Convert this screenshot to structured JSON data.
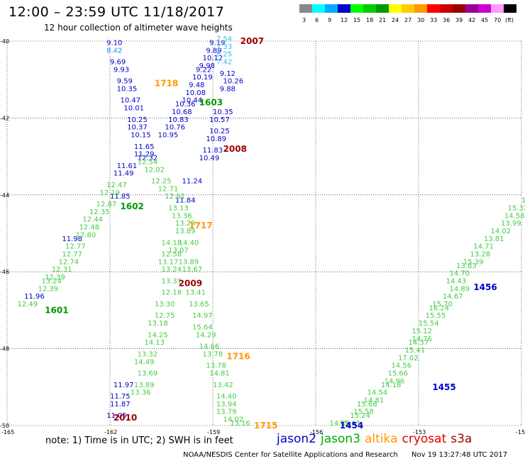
{
  "title": "12:00 – 23:59 UTC 11/18/2017",
  "subtitle": "12 hour collection of altimeter wave heights",
  "colorbar": {
    "labels": [
      "3",
      "6",
      "9",
      "12",
      "15",
      "18",
      "21",
      "24",
      "27",
      "30",
      "33",
      "36",
      "39",
      "42",
      "45",
      "70",
      "(ft)"
    ],
    "colors": [
      "#888888",
      "#00ffff",
      "#00aaff",
      "#0000cc",
      "#00ff00",
      "#00cc00",
      "#009900",
      "#ffff00",
      "#ffcc00",
      "#ff9900",
      "#ff0000",
      "#cc0000",
      "#990000",
      "#990099",
      "#cc00cc",
      "#ff99ff",
      "#000000"
    ]
  },
  "note": "note:  1) Time is in UTC;  2) SWH is in feet",
  "credit": "NOAA/NESDIS Center for Satellite Applications and Research",
  "timestamp": "Nov 19 13:27:48 UTC 2017",
  "satellites": [
    {
      "name": "jason2",
      "color": "#0000cc"
    },
    {
      "name": "jason3",
      "color": "#00aa00"
    },
    {
      "name": "altika",
      "color": "#ff9900"
    },
    {
      "name": "cryosat",
      "color": "#dd0000"
    },
    {
      "name": "s3a",
      "color": "#990000"
    }
  ],
  "chart_data": {
    "type": "scatter",
    "xlabel": "",
    "ylabel": "",
    "xlim": [
      -165,
      -150
    ],
    "ylim": [
      -50,
      -40
    ],
    "x_ticks": [
      "-165",
      "-162",
      "-159",
      "-156",
      "-153",
      "-150"
    ],
    "y_ticks": [
      "-40",
      "-42",
      "-44",
      "-46",
      "-48",
      "-50"
    ],
    "grid": true,
    "time_labels": [
      {
        "text": "2007",
        "lon": -158.2,
        "lat": -40.0,
        "color": "#990000"
      },
      {
        "text": "1718",
        "lon": -160.7,
        "lat": -41.1,
        "color": "#ff9900"
      },
      {
        "text": "1603",
        "lon": -159.4,
        "lat": -41.6,
        "color": "#009900"
      },
      {
        "text": "2008",
        "lon": -158.7,
        "lat": -42.8,
        "color": "#990000"
      },
      {
        "text": "1602",
        "lon": -161.7,
        "lat": -44.3,
        "color": "#009900"
      },
      {
        "text": "1717",
        "lon": -159.7,
        "lat": -44.8,
        "color": "#ff9900"
      },
      {
        "text": "2009",
        "lon": -160.0,
        "lat": -46.3,
        "color": "#990000"
      },
      {
        "text": "1601",
        "lon": -163.9,
        "lat": -47.0,
        "color": "#009900"
      },
      {
        "text": "1456",
        "lon": -151.4,
        "lat": -46.4,
        "color": "#0000cc"
      },
      {
        "text": "1716",
        "lon": -158.6,
        "lat": -48.2,
        "color": "#ff9900"
      },
      {
        "text": "1455",
        "lon": -152.6,
        "lat": -49.0,
        "color": "#0000cc"
      },
      {
        "text": "2010",
        "lon": -161.9,
        "lat": -49.8,
        "color": "#990000"
      },
      {
        "text": "1715",
        "lon": -157.8,
        "lat": -50.0,
        "color": "#ff9900"
      },
      {
        "text": "1454",
        "lon": -155.3,
        "lat": -50.0,
        "color": "#0000cc"
      }
    ],
    "series": [
      {
        "name": "jason2 (track A)",
        "color": "#0000cc",
        "points": [
          {
            "lon": -162.1,
            "lat": -40.1,
            "v": "9.10"
          },
          {
            "lon": -162.1,
            "lat": -40.3,
            "v": "8.42"
          },
          {
            "lon": -162.0,
            "lat": -40.6,
            "v": "9.69"
          },
          {
            "lon": -161.9,
            "lat": -40.8,
            "v": "9.93"
          },
          {
            "lon": -161.8,
            "lat": -41.1,
            "v": "9.59"
          },
          {
            "lon": -161.8,
            "lat": -41.3,
            "v": "10.35"
          },
          {
            "lon": -161.7,
            "lat": -41.6,
            "v": "10.47"
          },
          {
            "lon": -161.6,
            "lat": -41.8,
            "v": "10.01"
          },
          {
            "lon": -161.5,
            "lat": -42.1,
            "v": "10.25"
          },
          {
            "lon": -161.5,
            "lat": -42.3,
            "v": "10.37"
          },
          {
            "lon": -161.4,
            "lat": -42.5,
            "v": "10.15"
          },
          {
            "lon": -161.3,
            "lat": -42.8,
            "v": "11.65"
          },
          {
            "lon": -161.3,
            "lat": -43.0,
            "v": "11.29"
          },
          {
            "lon": -161.8,
            "lat": -43.3,
            "v": "11.61"
          },
          {
            "lon": -161.9,
            "lat": -43.5,
            "v": "11.49"
          },
          {
            "lon": -162.0,
            "lat": -44.1,
            "v": "11.85"
          },
          {
            "lon": -163.4,
            "lat": -45.2,
            "v": "11.98"
          },
          {
            "lon": -164.5,
            "lat": -46.7,
            "v": "11.96"
          },
          {
            "lon": -161.9,
            "lat": -49.0,
            "v": "11.97"
          },
          {
            "lon": -162.0,
            "lat": -49.3,
            "v": "11.75"
          },
          {
            "lon": -162.0,
            "lat": -49.5,
            "v": "11.87"
          },
          {
            "lon": -162.1,
            "lat": -49.8,
            "v": "11.05"
          }
        ]
      },
      {
        "name": "jason2 (track B)",
        "color": "#0000cc",
        "points": [
          {
            "lon": -159.1,
            "lat": -40.1,
            "v": "9.19"
          },
          {
            "lon": -159.2,
            "lat": -40.3,
            "v": "9.89"
          },
          {
            "lon": -159.3,
            "lat": -40.5,
            "v": "10.12"
          },
          {
            "lon": -159.4,
            "lat": -40.7,
            "v": "9.98"
          },
          {
            "lon": -159.5,
            "lat": -40.8,
            "v": "9.22"
          },
          {
            "lon": -158.8,
            "lat": -40.9,
            "v": "9.12"
          },
          {
            "lon": -159.6,
            "lat": -41.0,
            "v": "10.19"
          },
          {
            "lon": -158.7,
            "lat": -41.1,
            "v": "10.26"
          },
          {
            "lon": -159.7,
            "lat": -41.2,
            "v": "9.48"
          },
          {
            "lon": -159.8,
            "lat": -41.4,
            "v": "10.08"
          },
          {
            "lon": -158.8,
            "lat": -41.3,
            "v": "9.88"
          },
          {
            "lon": -159.9,
            "lat": -41.6,
            "v": "10.44"
          },
          {
            "lon": -160.1,
            "lat": -41.7,
            "v": "10.36"
          },
          {
            "lon": -159.0,
            "lat": -41.9,
            "v": "10.35"
          },
          {
            "lon": -160.2,
            "lat": -41.9,
            "v": "10.68"
          },
          {
            "lon": -160.3,
            "lat": -42.1,
            "v": "10.83"
          },
          {
            "lon": -159.1,
            "lat": -42.1,
            "v": "10.57"
          },
          {
            "lon": -160.4,
            "lat": -42.3,
            "v": "10.76"
          },
          {
            "lon": -159.1,
            "lat": -42.4,
            "v": "10.25"
          },
          {
            "lon": -160.6,
            "lat": -42.5,
            "v": "10.95"
          },
          {
            "lon": -159.2,
            "lat": -42.6,
            "v": "10.89"
          },
          {
            "lon": -159.3,
            "lat": -42.9,
            "v": "11.83"
          },
          {
            "lon": -159.4,
            "lat": -43.1,
            "v": "10.49"
          },
          {
            "lon": -159.9,
            "lat": -43.7,
            "v": "11.24"
          },
          {
            "lon": -160.1,
            "lat": -44.2,
            "v": "11.84"
          }
        ]
      },
      {
        "name": "jason2 (track C)",
        "color": "#0000cc",
        "points": [
          {
            "lon": -161.2,
            "lat": -43.1,
            "v": "12.32"
          }
        ]
      },
      {
        "name": "jason3 (track A)",
        "color": "#44cc44",
        "points": [
          {
            "lon": -161.2,
            "lat": -43.2,
            "v": "12.54"
          },
          {
            "lon": -161.0,
            "lat": -43.4,
            "v": "12.02"
          },
          {
            "lon": -160.8,
            "lat": -43.7,
            "v": "12.25"
          },
          {
            "lon": -162.1,
            "lat": -43.8,
            "v": "12.47"
          },
          {
            "lon": -160.6,
            "lat": -43.9,
            "v": "12.71"
          },
          {
            "lon": -162.3,
            "lat": -44.0,
            "v": "12.19"
          },
          {
            "lon": -160.4,
            "lat": -44.1,
            "v": "12.91"
          },
          {
            "lon": -162.4,
            "lat": -44.3,
            "v": "12.87"
          },
          {
            "lon": -160.3,
            "lat": -44.4,
            "v": "13.13"
          },
          {
            "lon": -162.6,
            "lat": -44.5,
            "v": "12.35"
          },
          {
            "lon": -160.2,
            "lat": -44.6,
            "v": "13.36"
          },
          {
            "lon": -162.8,
            "lat": -44.7,
            "v": "12.44"
          },
          {
            "lon": -160.1,
            "lat": -44.8,
            "v": "13.29"
          },
          {
            "lon": -162.9,
            "lat": -44.9,
            "v": "12.48"
          },
          {
            "lon": -160.1,
            "lat": -45.0,
            "v": "13.89"
          },
          {
            "lon": -163.0,
            "lat": -45.1,
            "v": "12.80"
          },
          {
            "lon": -160.0,
            "lat": -45.3,
            "v": "14.40"
          },
          {
            "lon": -160.5,
            "lat": -45.3,
            "v": "14.18"
          },
          {
            "lon": -163.3,
            "lat": -45.4,
            "v": "12.77"
          },
          {
            "lon": -160.3,
            "lat": -45.5,
            "v": "13.07"
          },
          {
            "lon": -160.5,
            "lat": -45.6,
            "v": "12.58"
          },
          {
            "lon": -163.4,
            "lat": -45.6,
            "v": "12.77"
          },
          {
            "lon": -160.6,
            "lat": -45.8,
            "v": "13.17"
          },
          {
            "lon": -160.0,
            "lat": -45.8,
            "v": "13.89"
          },
          {
            "lon": -163.5,
            "lat": -45.8,
            "v": "12.74"
          },
          {
            "lon": -163.7,
            "lat": -46.0,
            "v": "12.31"
          },
          {
            "lon": -160.5,
            "lat": -46.0,
            "v": "13.24"
          },
          {
            "lon": -159.9,
            "lat": -46.0,
            "v": "13.67"
          },
          {
            "lon": -163.9,
            "lat": -46.2,
            "v": "12.39"
          },
          {
            "lon": -164.0,
            "lat": -46.3,
            "v": "13.24"
          },
          {
            "lon": -160.5,
            "lat": -46.3,
            "v": "13.31"
          },
          {
            "lon": -164.1,
            "lat": -46.5,
            "v": "12.39"
          },
          {
            "lon": -160.5,
            "lat": -46.6,
            "v": "12.18"
          },
          {
            "lon": -159.8,
            "lat": -46.6,
            "v": "13.41"
          },
          {
            "lon": -164.7,
            "lat": -46.9,
            "v": "12.49"
          },
          {
            "lon": -160.7,
            "lat": -46.9,
            "v": "13.30"
          },
          {
            "lon": -159.7,
            "lat": -46.9,
            "v": "13.65"
          },
          {
            "lon": -160.7,
            "lat": -47.2,
            "v": "12.75"
          },
          {
            "lon": -159.6,
            "lat": -47.2,
            "v": "14.97"
          },
          {
            "lon": -160.9,
            "lat": -47.4,
            "v": "13.18"
          },
          {
            "lon": -159.6,
            "lat": -47.5,
            "v": "15.64"
          },
          {
            "lon": -160.9,
            "lat": -47.7,
            "v": "14.25"
          },
          {
            "lon": -159.5,
            "lat": -47.7,
            "v": "14.29"
          },
          {
            "lon": -161.0,
            "lat": -47.9,
            "v": "14.13"
          },
          {
            "lon": -159.4,
            "lat": -48.0,
            "v": "14.66"
          },
          {
            "lon": -161.2,
            "lat": -48.2,
            "v": "13.32"
          },
          {
            "lon": -159.3,
            "lat": -48.2,
            "v": "13.78"
          },
          {
            "lon": -161.3,
            "lat": -48.4,
            "v": "14.49"
          },
          {
            "lon": -159.2,
            "lat": -48.5,
            "v": "13.78"
          },
          {
            "lon": -161.2,
            "lat": -48.7,
            "v": "13.69"
          },
          {
            "lon": -159.1,
            "lat": -48.7,
            "v": "14.81"
          },
          {
            "lon": -161.3,
            "lat": -49.0,
            "v": "13.89"
          },
          {
            "lon": -159.0,
            "lat": -49.0,
            "v": "13.42"
          },
          {
            "lon": -161.4,
            "lat": -49.2,
            "v": "13.36"
          },
          {
            "lon": -158.9,
            "lat": -49.3,
            "v": "14.40"
          },
          {
            "lon": -158.9,
            "lat": -49.5,
            "v": "13.94"
          },
          {
            "lon": -158.9,
            "lat": -49.7,
            "v": "13.79"
          },
          {
            "lon": -158.7,
            "lat": -49.9,
            "v": "14.02"
          },
          {
            "lon": -158.5,
            "lat": -50.0,
            "v": "13.16"
          }
        ]
      },
      {
        "name": "jason3 (track B)",
        "color": "#44cc44",
        "points": [
          {
            "lon": -150.0,
            "lat": -44.2,
            "v": "15"
          },
          {
            "lon": -150.4,
            "lat": -44.4,
            "v": "15.32"
          },
          {
            "lon": -150.5,
            "lat": -44.6,
            "v": "14.58"
          },
          {
            "lon": -150.6,
            "lat": -44.8,
            "v": "13.99"
          },
          {
            "lon": -150.9,
            "lat": -45.0,
            "v": "14.02"
          },
          {
            "lon": -151.1,
            "lat": -45.2,
            "v": "13.81"
          },
          {
            "lon": -151.4,
            "lat": -45.4,
            "v": "14.71"
          },
          {
            "lon": -151.5,
            "lat": -45.6,
            "v": "13.28"
          },
          {
            "lon": -151.7,
            "lat": -45.8,
            "v": "15.39"
          },
          {
            "lon": -151.9,
            "lat": -45.9,
            "v": "13.83"
          },
          {
            "lon": -152.1,
            "lat": -46.1,
            "v": "14.70"
          },
          {
            "lon": -152.2,
            "lat": -46.3,
            "v": "14.43"
          },
          {
            "lon": -152.1,
            "lat": -46.5,
            "v": "14.89"
          },
          {
            "lon": -152.3,
            "lat": -46.7,
            "v": "14.67"
          },
          {
            "lon": -152.6,
            "lat": -46.9,
            "v": "15.70"
          },
          {
            "lon": -152.7,
            "lat": -47.0,
            "v": "16.24"
          },
          {
            "lon": -152.8,
            "lat": -47.2,
            "v": "15.55"
          },
          {
            "lon": -153.0,
            "lat": -47.4,
            "v": "15.54"
          },
          {
            "lon": -153.2,
            "lat": -47.6,
            "v": "15.12"
          },
          {
            "lon": -153.2,
            "lat": -47.8,
            "v": "14.76"
          },
          {
            "lon": -153.3,
            "lat": -47.9,
            "v": "14.37"
          },
          {
            "lon": -153.4,
            "lat": -48.1,
            "v": "15.41"
          },
          {
            "lon": -153.6,
            "lat": -48.3,
            "v": "17.02"
          },
          {
            "lon": -153.8,
            "lat": -48.5,
            "v": "14.56"
          },
          {
            "lon": -153.9,
            "lat": -48.7,
            "v": "15.66"
          },
          {
            "lon": -154.0,
            "lat": -48.9,
            "v": "14.96"
          },
          {
            "lon": -154.1,
            "lat": -49.0,
            "v": "14.18"
          },
          {
            "lon": -154.5,
            "lat": -49.2,
            "v": "14.54"
          },
          {
            "lon": -154.6,
            "lat": -49.4,
            "v": "14.81"
          },
          {
            "lon": -154.8,
            "lat": -49.5,
            "v": "15.68"
          },
          {
            "lon": -154.9,
            "lat": -49.7,
            "v": "15.58"
          },
          {
            "lon": -155.0,
            "lat": -49.8,
            "v": "15.24"
          },
          {
            "lon": -155.3,
            "lat": -50.0,
            "v": "15.43"
          },
          {
            "lon": -155.6,
            "lat": -50.0,
            "v": "14.39"
          }
        ]
      },
      {
        "name": "jason3 (dark)",
        "color": "#008800",
        "points": []
      },
      {
        "name": "altika",
        "color": "#33bbee",
        "points": [
          {
            "lon": -158.9,
            "lat": -40.0,
            "v": "7.54"
          },
          {
            "lon": -158.9,
            "lat": -40.2,
            "v": "7.33"
          },
          {
            "lon": -158.9,
            "lat": -40.4,
            "v": "8.25"
          },
          {
            "lon": -158.9,
            "lat": -40.6,
            "v": "7.42"
          },
          {
            "lon": -162.1,
            "lat": -40.3,
            "v": "8.42"
          }
        ]
      }
    ]
  }
}
